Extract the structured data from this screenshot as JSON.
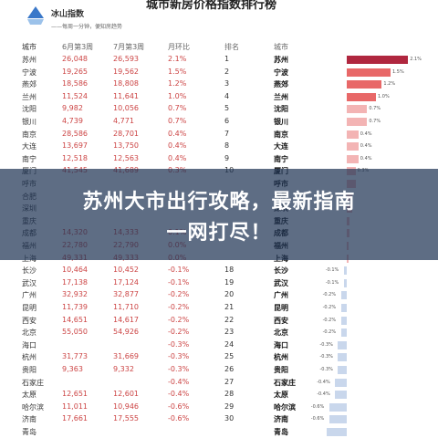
{
  "brand": {
    "name": "冰山指数",
    "slogan": "——每周一分钟，便知房趋势"
  },
  "page_title": "城市新房价格指数排行榜",
  "columns": {
    "city": "城市",
    "jun": "6月第3周",
    "jul": "7月第3周",
    "mom": "月环比",
    "rank": "排名",
    "city2": "城市"
  },
  "rows": [
    {
      "city": "苏州",
      "jun": "26,048",
      "jul": "26,593",
      "mom": "2.1%",
      "rank": "1",
      "label": "2.1%",
      "pct": 2.1
    },
    {
      "city": "宁波",
      "jun": "19,265",
      "jul": "19,562",
      "mom": "1.5%",
      "rank": "2",
      "label": "1.5%",
      "pct": 1.5
    },
    {
      "city": "燕郊",
      "jun": "18,586",
      "jul": "18,808",
      "mom": "1.2%",
      "rank": "3",
      "label": "1.2%",
      "pct": 1.2
    },
    {
      "city": "兰州",
      "jun": "11,524",
      "jul": "11,641",
      "mom": "1.0%",
      "rank": "4",
      "label": "1.0%",
      "pct": 1.0
    },
    {
      "city": "沈阳",
      "jun": "9,982",
      "jul": "10,056",
      "mom": "0.7%",
      "rank": "5",
      "label": "0.7%",
      "pct": 0.7
    },
    {
      "city": "银川",
      "jun": "4,739",
      "jul": "4,771",
      "mom": "0.7%",
      "rank": "6",
      "label": "0.7%",
      "pct": 0.7
    },
    {
      "city": "南京",
      "jun": "28,586",
      "jul": "28,701",
      "mom": "0.4%",
      "rank": "7",
      "label": "0.4%",
      "pct": 0.4
    },
    {
      "city": "大连",
      "jun": "13,697",
      "jul": "13,750",
      "mom": "0.4%",
      "rank": "8",
      "label": "0.4%",
      "pct": 0.4
    },
    {
      "city": "南宁",
      "jun": "12,518",
      "jul": "12,563",
      "mom": "0.4%",
      "rank": "9",
      "label": "0.4%",
      "pct": 0.4
    },
    {
      "city": "厦门",
      "jun": "41,545",
      "jul": "41,689",
      "mom": "0.3%",
      "rank": "10",
      "label": "0.3%",
      "pct": 0.3
    },
    {
      "city": "呼市",
      "jun": "",
      "jul": "",
      "mom": "",
      "rank": "",
      "label": "",
      "pct": 0.3
    },
    {
      "city": "合肥",
      "jun": "",
      "jul": "",
      "mom": "",
      "rank": "",
      "label": "",
      "pct": 0.2
    },
    {
      "city": "深圳",
      "jun": "",
      "jul": "",
      "mom": "",
      "rank": "",
      "label": "",
      "pct": 0.2
    },
    {
      "city": "重庆",
      "jun": "",
      "jul": "",
      "mom": "",
      "rank": "",
      "label": "",
      "pct": 0.1
    },
    {
      "city": "成都",
      "jun": "14,320",
      "jul": "14,333",
      "mom": "0.1%",
      "rank": "",
      "label": "",
      "pct": 0.1
    },
    {
      "city": "福州",
      "jun": "22,780",
      "jul": "22,790",
      "mom": "0.0%",
      "rank": "",
      "label": "",
      "pct": 0.0
    },
    {
      "city": "上海",
      "jun": "49,331",
      "jul": "49,333",
      "mom": "0.0%",
      "rank": "",
      "label": "",
      "pct": 0.0
    },
    {
      "city": "长沙",
      "jun": "10,464",
      "jul": "10,452",
      "mom": "-0.1%",
      "rank": "18",
      "label": "-0.1%",
      "pct": -0.1
    },
    {
      "city": "武汉",
      "jun": "17,138",
      "jul": "17,124",
      "mom": "-0.1%",
      "rank": "19",
      "label": "-0.1%",
      "pct": -0.1
    },
    {
      "city": "广州",
      "jun": "32,932",
      "jul": "32,877",
      "mom": "-0.2%",
      "rank": "20",
      "label": "-0.2%",
      "pct": -0.2
    },
    {
      "city": "昆明",
      "jun": "11,739",
      "jul": "11,710",
      "mom": "-0.2%",
      "rank": "21",
      "label": "-0.2%",
      "pct": -0.2
    },
    {
      "city": "西安",
      "jun": "14,651",
      "jul": "14,617",
      "mom": "-0.2%",
      "rank": "22",
      "label": "-0.2%",
      "pct": -0.2
    },
    {
      "city": "北京",
      "jun": "55,050",
      "jul": "54,926",
      "mom": "-0.2%",
      "rank": "23",
      "label": "-0.2%",
      "pct": -0.2
    },
    {
      "city": "海口",
      "jun": "",
      "jul": "",
      "mom": "-0.3%",
      "rank": "24",
      "label": "-0.3%",
      "pct": -0.3
    },
    {
      "city": "杭州",
      "jun": "31,773",
      "jul": "31,669",
      "mom": "-0.3%",
      "rank": "25",
      "label": "-0.3%",
      "pct": -0.3
    },
    {
      "city": "贵阳",
      "jun": "9,363",
      "jul": "9,332",
      "mom": "-0.3%",
      "rank": "26",
      "label": "-0.3%",
      "pct": -0.3
    },
    {
      "city": "石家庄",
      "jun": "",
      "jul": "",
      "mom": "-0.4%",
      "rank": "27",
      "label": "-0.4%",
      "pct": -0.4
    },
    {
      "city": "太原",
      "jun": "12,651",
      "jul": "12,601",
      "mom": "-0.4%",
      "rank": "28",
      "label": "-0.4%",
      "pct": -0.4
    },
    {
      "city": "哈尔滨",
      "jun": "11,011",
      "jul": "10,946",
      "mom": "-0.6%",
      "rank": "29",
      "label": "-0.6%",
      "pct": -0.6
    },
    {
      "city": "济南",
      "jun": "17,661",
      "jul": "17,555",
      "mom": "-0.6%",
      "rank": "30",
      "label": "-0.6%",
      "pct": -0.6
    },
    {
      "city": "青岛",
      "jun": "",
      "jul": "",
      "mom": "",
      "rank": "",
      "label": "",
      "pct": -0.7
    }
  ],
  "banner": {
    "line1": "苏州大市出行攻略，最新指南",
    "line2": "一网打尽！"
  },
  "colors": {
    "bar_top": "#b0273f",
    "bar_mid": "#e86868",
    "bar_low": "#f3b4b4",
    "bar_neg": "#c9d7ec",
    "value_red": "#c44444",
    "banner_bg": "#203455"
  }
}
